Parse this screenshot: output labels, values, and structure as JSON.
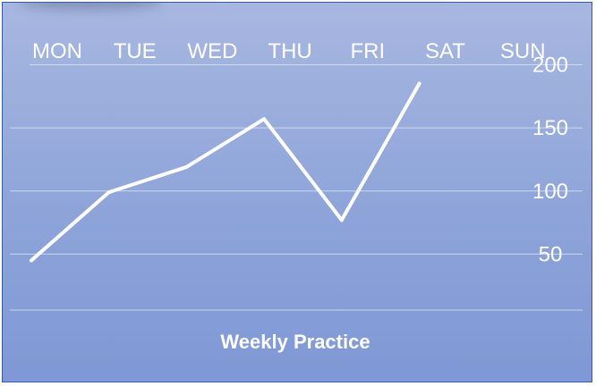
{
  "chart_data": {
    "type": "line",
    "title": "Weekly Practice",
    "categories": [
      "MON",
      "TUE",
      "WED",
      "THU",
      "FRI",
      "SAT",
      "SUN"
    ],
    "series": [
      {
        "values": [
          45,
          99,
          119,
          157,
          77,
          185,
          null
        ]
      }
    ],
    "yticks": [
      50,
      100,
      150,
      200
    ],
    "ylim": [
      5,
      235
    ],
    "grid": true,
    "x_axis_position": "top",
    "y_axis_position": "right",
    "colors": {
      "line": "#ffffff",
      "grid": "#d9e1f2",
      "background_top": "#a7b7e0",
      "background_bottom": "#7f98d6"
    }
  }
}
